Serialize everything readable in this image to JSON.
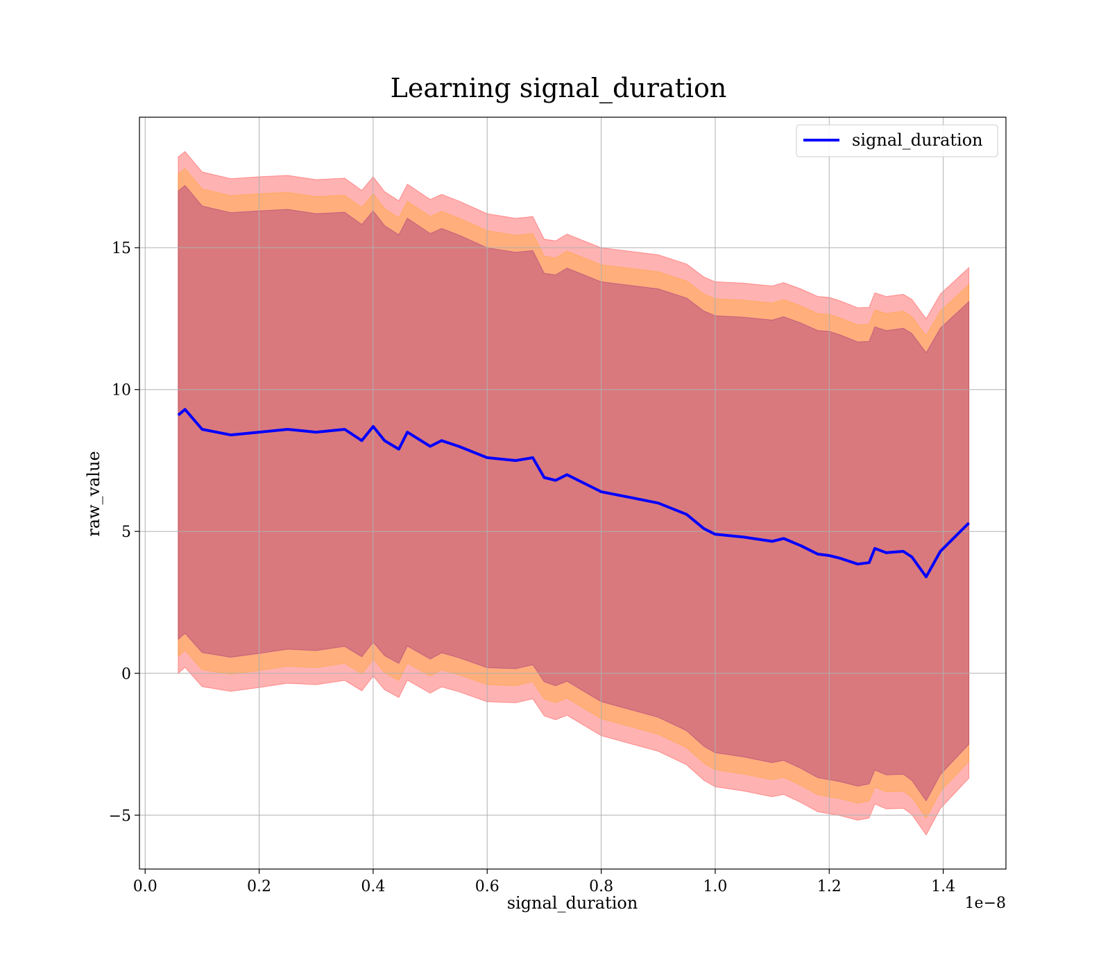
{
  "chart_data": {
    "type": "line",
    "title": "Learning signal_duration",
    "xlabel": "signal_duration",
    "ylabel": "raw_value",
    "x_scale_label": "1e−8",
    "xlim": [
      -0.01,
      1.51
    ],
    "ylim": [
      -6.9,
      19.6
    ],
    "x_ticks": [
      0.0,
      0.2,
      0.4,
      0.6,
      0.8,
      1.0,
      1.2,
      1.4
    ],
    "x_tick_labels": [
      "0.0",
      "0.2",
      "0.4",
      "0.6",
      "0.8",
      "1.0",
      "1.2",
      "1.4"
    ],
    "y_ticks": [
      -5,
      0,
      5,
      10,
      15
    ],
    "y_tick_labels": [
      "−5",
      "0",
      "5",
      "10",
      "15"
    ],
    "grid": true,
    "legend": {
      "position": "top-right",
      "entries": [
        "signal_duration"
      ]
    },
    "series": [
      {
        "name": "signal_duration",
        "color": "#0000ff",
        "x": [
          0.058,
          0.07,
          0.1,
          0.15,
          0.2,
          0.25,
          0.3,
          0.35,
          0.38,
          0.4,
          0.42,
          0.445,
          0.46,
          0.5,
          0.52,
          0.55,
          0.6,
          0.65,
          0.68,
          0.7,
          0.72,
          0.74,
          0.8,
          0.85,
          0.9,
          0.95,
          0.98,
          1.0,
          1.05,
          1.1,
          1.12,
          1.15,
          1.18,
          1.2,
          1.22,
          1.25,
          1.27,
          1.28,
          1.3,
          1.33,
          1.345,
          1.37,
          1.395,
          1.445
        ],
        "y": [
          9.1,
          9.3,
          8.6,
          8.4,
          8.5,
          8.6,
          8.5,
          8.6,
          8.2,
          8.7,
          8.2,
          7.9,
          8.5,
          8.0,
          8.2,
          8.0,
          7.6,
          7.5,
          7.6,
          6.9,
          6.8,
          7.0,
          6.4,
          6.2,
          6.0,
          5.6,
          5.1,
          4.9,
          4.8,
          4.65,
          4.75,
          4.5,
          4.2,
          4.15,
          4.05,
          3.85,
          3.9,
          4.4,
          4.25,
          4.3,
          4.1,
          3.4,
          4.3,
          5.3
        ]
      }
    ],
    "bands": [
      {
        "color": "#ff0000",
        "opacity": 0.3,
        "sigma": 3
      },
      {
        "color": "#ffa500",
        "opacity": 0.3,
        "sigma": 2
      },
      {
        "color": "#800080",
        "opacity": 0.3,
        "sigma": 1
      }
    ],
    "band_half_width": {
      "x": [
        0.058,
        0.2,
        0.4,
        0.6,
        0.68,
        0.7,
        0.8,
        1.0,
        1.2,
        1.27,
        1.37,
        1.445
      ],
      "sigma1": [
        7.9,
        7.8,
        7.6,
        7.4,
        7.3,
        7.2,
        7.4,
        7.7,
        7.9,
        7.8,
        7.9,
        7.8
      ],
      "sigma2": [
        8.5,
        8.4,
        8.2,
        8.0,
        7.9,
        7.8,
        8.0,
        8.3,
        8.5,
        8.4,
        8.5,
        8.4
      ],
      "sigma3": [
        9.1,
        9.0,
        8.8,
        8.6,
        8.5,
        8.4,
        8.6,
        8.9,
        9.1,
        9.0,
        9.1,
        9.0
      ]
    }
  }
}
